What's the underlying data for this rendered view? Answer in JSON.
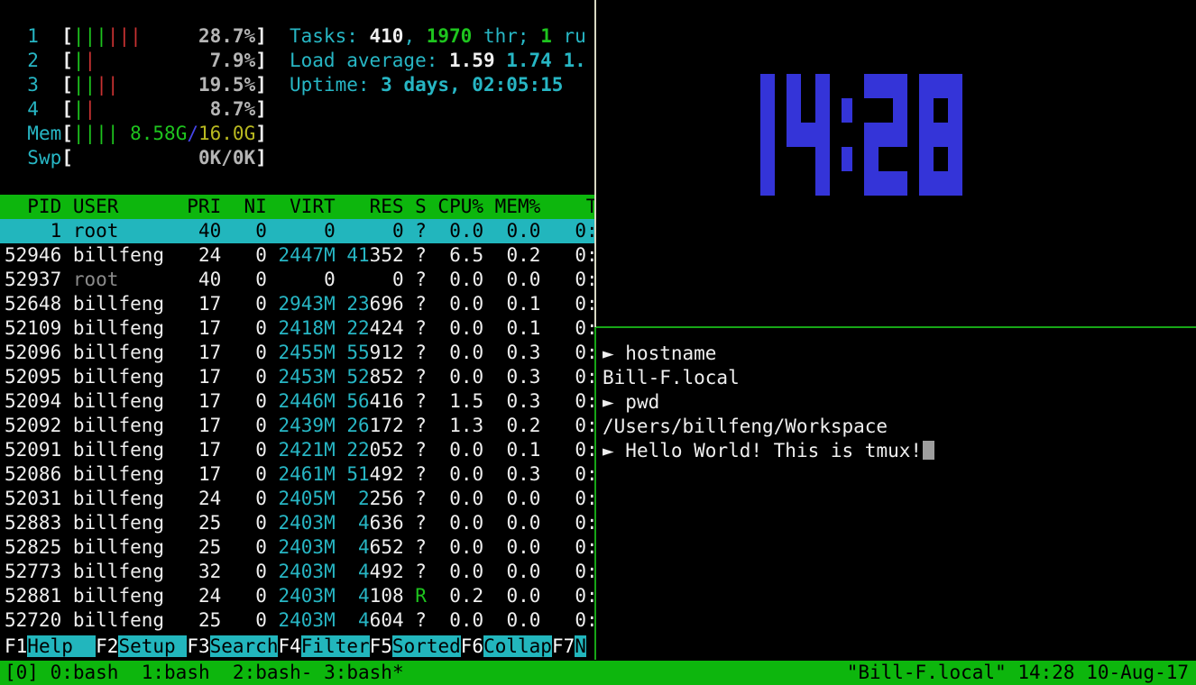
{
  "htop": {
    "meters": {
      "cpus": [
        {
          "label": "1",
          "green_bars": 3,
          "red_bars": 3,
          "pct": "28.7%"
        },
        {
          "label": "2",
          "green_bars": 1,
          "red_bars": 1,
          "pct": "7.9%"
        },
        {
          "label": "3",
          "green_bars": 2,
          "red_bars": 2,
          "pct": "19.5%"
        },
        {
          "label": "4",
          "green_bars": 1,
          "red_bars": 1,
          "pct": "8.7%"
        }
      ],
      "mem": {
        "label": "Mem",
        "green_bars": 4,
        "used": "8.58G",
        "total": "16.0G"
      },
      "swp": {
        "label": "Swp",
        "value": "0K/0K"
      }
    },
    "stats_lines": [
      [
        {
          "t": "Tasks: ",
          "c": "cy"
        },
        {
          "t": "410",
          "c": "wb"
        },
        {
          "t": ", ",
          "c": "cy"
        },
        {
          "t": "1970",
          "c": "gb"
        },
        {
          "t": " thr; ",
          "c": "cy"
        },
        {
          "t": "1",
          "c": "gb"
        },
        {
          "t": " ru",
          "c": "cy"
        }
      ],
      [
        {
          "t": "Load average: ",
          "c": "cy"
        },
        {
          "t": "1.59 ",
          "c": "wb"
        },
        {
          "t": "1.74 ",
          "c": "cb"
        },
        {
          "t": "1.",
          "c": "cb"
        }
      ],
      [
        {
          "t": "Uptime: ",
          "c": "cy"
        },
        {
          "t": "3 days, 02:05:15",
          "c": "cb"
        }
      ]
    ],
    "table": {
      "columns": [
        "PID",
        "USER",
        "PRI",
        "NI",
        "VIRT",
        "RES",
        "S",
        "CPU%",
        "MEM%",
        "T"
      ],
      "processes": [
        {
          "pid": "1",
          "user": "root",
          "pri": "40",
          "ni": "0",
          "virt": "0",
          "res": "0",
          "s": "?",
          "cpu": "0.0",
          "mem": "0.0",
          "time": "0:",
          "selected": true
        },
        {
          "pid": "52946",
          "user": "billfeng",
          "pri": "24",
          "ni": "0",
          "virt": "2447M",
          "res": "41352",
          "s": "?",
          "cpu": "6.5",
          "mem": "0.2",
          "time": "0:"
        },
        {
          "pid": "52937",
          "user": "root",
          "pri": "40",
          "ni": "0",
          "virt": "0",
          "res": "0",
          "s": "?",
          "cpu": "0.0",
          "mem": "0.0",
          "time": "0:"
        },
        {
          "pid": "52648",
          "user": "billfeng",
          "pri": "17",
          "ni": "0",
          "virt": "2943M",
          "res": "23696",
          "s": "?",
          "cpu": "0.0",
          "mem": "0.1",
          "time": "0:"
        },
        {
          "pid": "52109",
          "user": "billfeng",
          "pri": "17",
          "ni": "0",
          "virt": "2418M",
          "res": "22424",
          "s": "?",
          "cpu": "0.0",
          "mem": "0.1",
          "time": "0:"
        },
        {
          "pid": "52096",
          "user": "billfeng",
          "pri": "17",
          "ni": "0",
          "virt": "2455M",
          "res": "55912",
          "s": "?",
          "cpu": "0.0",
          "mem": "0.3",
          "time": "0:"
        },
        {
          "pid": "52095",
          "user": "billfeng",
          "pri": "17",
          "ni": "0",
          "virt": "2453M",
          "res": "52852",
          "s": "?",
          "cpu": "0.0",
          "mem": "0.3",
          "time": "0:"
        },
        {
          "pid": "52094",
          "user": "billfeng",
          "pri": "17",
          "ni": "0",
          "virt": "2446M",
          "res": "56416",
          "s": "?",
          "cpu": "1.5",
          "mem": "0.3",
          "time": "0:"
        },
        {
          "pid": "52092",
          "user": "billfeng",
          "pri": "17",
          "ni": "0",
          "virt": "2439M",
          "res": "26172",
          "s": "?",
          "cpu": "1.3",
          "mem": "0.2",
          "time": "0:"
        },
        {
          "pid": "52091",
          "user": "billfeng",
          "pri": "17",
          "ni": "0",
          "virt": "2421M",
          "res": "22052",
          "s": "?",
          "cpu": "0.0",
          "mem": "0.1",
          "time": "0:"
        },
        {
          "pid": "52086",
          "user": "billfeng",
          "pri": "17",
          "ni": "0",
          "virt": "2461M",
          "res": "51492",
          "s": "?",
          "cpu": "0.0",
          "mem": "0.3",
          "time": "0:"
        },
        {
          "pid": "52031",
          "user": "billfeng",
          "pri": "24",
          "ni": "0",
          "virt": "2405M",
          "res": "2256",
          "s": "?",
          "cpu": "0.0",
          "mem": "0.0",
          "time": "0:"
        },
        {
          "pid": "52883",
          "user": "billfeng",
          "pri": "25",
          "ni": "0",
          "virt": "2403M",
          "res": "4636",
          "s": "?",
          "cpu": "0.0",
          "mem": "0.0",
          "time": "0:"
        },
        {
          "pid": "52825",
          "user": "billfeng",
          "pri": "25",
          "ni": "0",
          "virt": "2403M",
          "res": "4652",
          "s": "?",
          "cpu": "0.0",
          "mem": "0.0",
          "time": "0:"
        },
        {
          "pid": "52773",
          "user": "billfeng",
          "pri": "32",
          "ni": "0",
          "virt": "2403M",
          "res": "4492",
          "s": "?",
          "cpu": "0.0",
          "mem": "0.0",
          "time": "0:"
        },
        {
          "pid": "52881",
          "user": "billfeng",
          "pri": "24",
          "ni": "0",
          "virt": "2403M",
          "res": "4108",
          "s": "R",
          "cpu": "0.2",
          "mem": "0.0",
          "time": "0:"
        },
        {
          "pid": "52720",
          "user": "billfeng",
          "pri": "25",
          "ni": "0",
          "virt": "2403M",
          "res": "4604",
          "s": "?",
          "cpu": "0.0",
          "mem": "0.0",
          "time": "0:"
        }
      ]
    },
    "fkeys": [
      {
        "key": "F1",
        "label": "Help  "
      },
      {
        "key": "F2",
        "label": "Setup "
      },
      {
        "key": "F3",
        "label": "Search"
      },
      {
        "key": "F4",
        "label": "Filter"
      },
      {
        "key": "F5",
        "label": "Sorted"
      },
      {
        "key": "F6",
        "label": "Collap"
      },
      {
        "key": "F7",
        "label": "N"
      }
    ]
  },
  "clock": {
    "time": "14:28"
  },
  "terminal": {
    "prompt_char": "►",
    "lines": [
      {
        "prompt": true,
        "text": "hostname"
      },
      {
        "prompt": false,
        "text": "Bill-F.local"
      },
      {
        "prompt": true,
        "text": "pwd"
      },
      {
        "prompt": false,
        "text": "/Users/billfeng/Workspace"
      },
      {
        "prompt": true,
        "text": "Hello World! This is tmux!",
        "cursor": true
      }
    ]
  },
  "tmux": {
    "session_prefix": "[0]",
    "windows": [
      {
        "name": "0:bash",
        "flag": " "
      },
      {
        "name": "1:bash",
        "flag": " "
      },
      {
        "name": "2:bash",
        "flag": "-"
      },
      {
        "name": "3:bash",
        "flag": "*"
      }
    ],
    "status_right": "\"Bill-F.local\" 14:28 10-Aug-17"
  },
  "colors": {
    "green_bg": "#0db60d",
    "cyan_bg": "#22b6bd",
    "cyan_text": "#27b6c4",
    "green_text": "#1ec41e",
    "red_text": "#c93232",
    "yellow_text": "#b9b920",
    "gray_text": "#b5b5b5",
    "dim_text": "#8b8b8b",
    "white_text": "#efefef",
    "blue_text": "#4545e8",
    "clock_blue": "#3434d8",
    "border_inactive": "#d8d8c2",
    "border_active": "#17a617"
  }
}
